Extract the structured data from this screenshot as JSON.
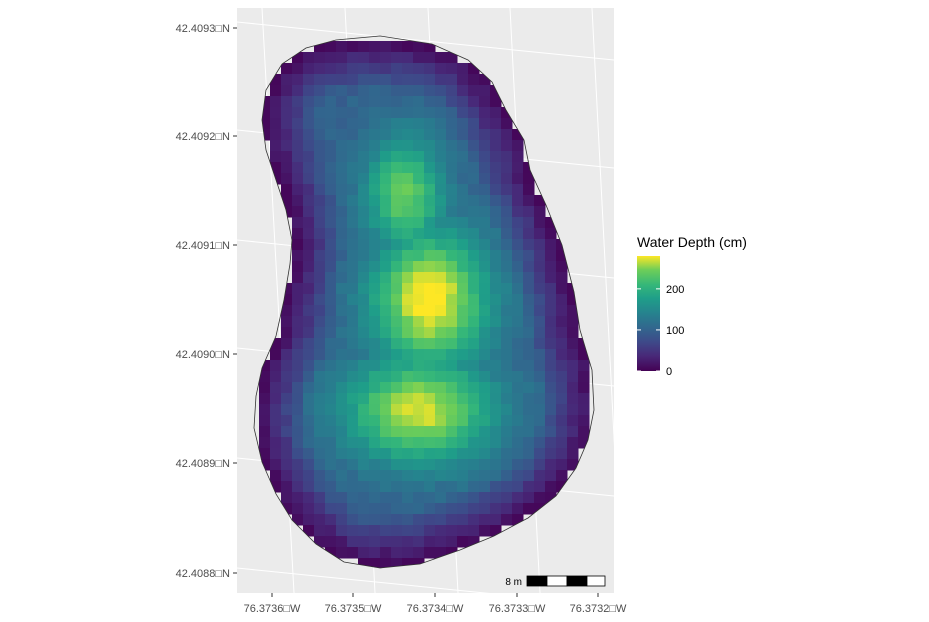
{
  "map": {
    "panel_background": "#ebebeb",
    "grid_color": "#ffffff",
    "outline_color": "#333333",
    "latitude_labels": [
      "42.4093□N",
      "42.4092□N",
      "42.4091□N",
      "42.4090□N",
      "42.4089□N",
      "42.4088□N"
    ],
    "longitude_labels": [
      "76.3736□W",
      "76.3735□W",
      "76.3734□W",
      "76.3733□W",
      "76.3732□W"
    ]
  },
  "legend": {
    "title": "Water Depth (cm)",
    "tick_labels": [
      "200",
      "100",
      "0"
    ],
    "tick_values": [
      200,
      100,
      0
    ],
    "range": [
      0,
      280
    ],
    "colormap": "viridis",
    "colors": [
      "#440154",
      "#3b528b",
      "#21908c",
      "#5dc863",
      "#fde725"
    ]
  },
  "scale_bar": {
    "label": "8 m"
  },
  "chart_data": {
    "type": "heatmap",
    "title": "",
    "xlabel": "",
    "ylabel": "",
    "x_ticks": [
      "76.3736□W",
      "76.3735□W",
      "76.3734□W",
      "76.3733□W",
      "76.3732□W"
    ],
    "y_ticks": [
      "42.4093□N",
      "42.4092□N",
      "42.4091□N",
      "42.4090□N",
      "42.4089□N",
      "42.4088□N"
    ],
    "value_name": "Water Depth (cm)",
    "value_range": [
      0,
      280
    ],
    "max_depth_approx": 280,
    "deepest_area": "upper-middle of pond, near 76.37339 W, 42.40905 N",
    "colormap": "viridis"
  }
}
